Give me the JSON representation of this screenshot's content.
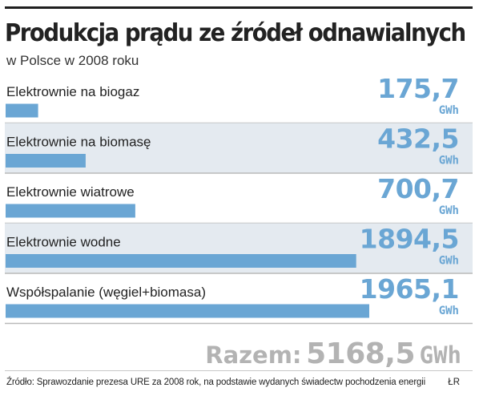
{
  "header": {
    "title": "Produkcja prądu ze źródeł odnawialnych",
    "subtitle": "w Polsce w 2008 roku"
  },
  "chart_data": {
    "type": "bar",
    "orientation": "horizontal",
    "title": "Produkcja prądu ze źródeł odnawialnych",
    "subtitle": "w Polsce w 2008 roku",
    "unit": "GWh",
    "categories": [
      "Elektrownie na biogaz",
      "Elektrownie na biomasę",
      "Elektrownie wiatrowe",
      "Elektrownie wodne",
      "Współspalanie (węgiel+biomasa)"
    ],
    "values": [
      175.7,
      432.5,
      700.7,
      1894.5,
      1965.1
    ],
    "value_labels": [
      "175,7",
      "432,5",
      "700,7",
      "1894,5",
      "1965,1"
    ],
    "xlim": [
      0,
      1965.1
    ],
    "grid": false,
    "legend": "none"
  },
  "total": {
    "label": "Razem:",
    "value": "5168,5",
    "unit": "GWh"
  },
  "footer": {
    "source": "Źródło: Sprawozdanie prezesa URE za 2008 rok, na podstawie wydanych świadectw pochodzenia energii",
    "credit": "ŁR"
  },
  "colors": {
    "bar": "#6aa6d4",
    "value_text": "#6aa6d4",
    "row_band": "#e4eaf0",
    "separator": "#b9b9b9",
    "title": "#222222",
    "total_text": "#b3b3b3"
  }
}
